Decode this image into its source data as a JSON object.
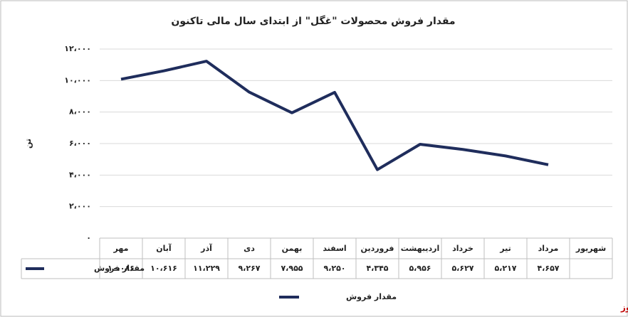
{
  "chart_data": {
    "type": "line",
    "title": "مقدار فروش محصولات \"غگل\" از ابتدای سال مالی تاکنون",
    "y_label": "تن",
    "categories": [
      "مهر",
      "آبان",
      "آذر",
      "دی",
      "بهمن",
      "اسفند",
      "فروردین",
      "اردیبهشت",
      "خرداد",
      "تیر",
      "مرداد",
      "شهریور"
    ],
    "series": [
      {
        "name": "مقدار فروش",
        "color": "#1f2d5c",
        "values": [
          10086,
          10616,
          11229,
          9267,
          7955,
          9250,
          4345,
          5956,
          5627,
          5217,
          4657,
          null
        ],
        "value_labels": [
          "۱۰،۰۸۶",
          "۱۰،۶۱۶",
          "۱۱،۲۲۹",
          "۹،۲۶۷",
          "۷،۹۵۵",
          "۹،۲۵۰",
          "۴،۳۴۵",
          "۵،۹۵۶",
          "۵،۶۲۷",
          "۵،۲۱۷",
          "۴،۶۵۷",
          null
        ]
      }
    ],
    "ylim": [
      0,
      12000
    ],
    "yticks": [
      {
        "value": 0,
        "label": "۰"
      },
      {
        "value": 2000,
        "label": "۲،۰۰۰"
      },
      {
        "value": 4000,
        "label": "۴،۰۰۰"
      },
      {
        "value": 6000,
        "label": "۶،۰۰۰"
      },
      {
        "value": 8000,
        "label": "۸،۰۰۰"
      },
      {
        "value": 10000,
        "label": "۱۰،۰۰۰"
      },
      {
        "value": 12000,
        "label": "۱۲،۰۰۰"
      }
    ],
    "grid": true,
    "watermark": "بورس نیوز"
  }
}
